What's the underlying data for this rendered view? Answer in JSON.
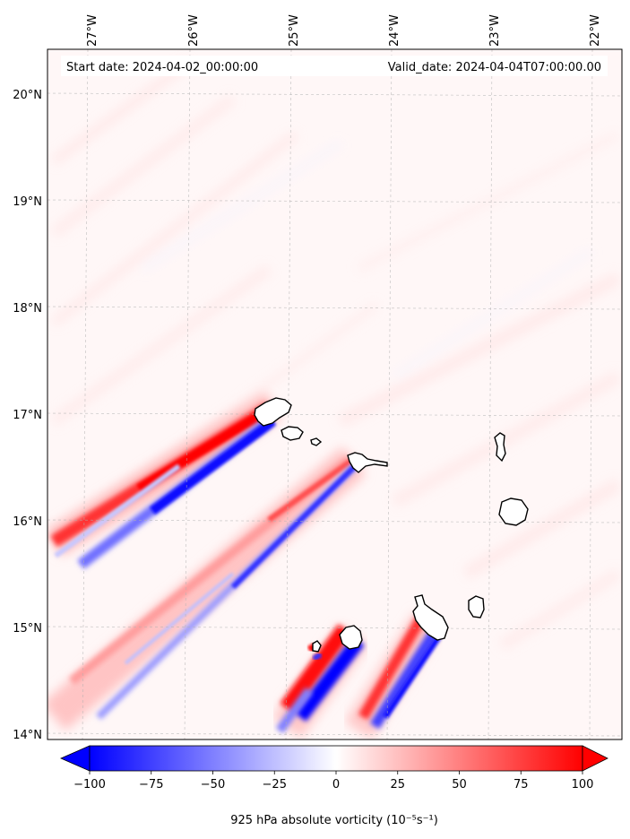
{
  "chart_data": {
    "type": "heatmap",
    "title_left": "Start date: 2024-04-02_00:00:00",
    "title_right": "Valid_date: 2024-04-04T07:00:00.00",
    "x_ticks": [
      "27°W",
      "26°W",
      "25°W",
      "24°W",
      "23°W",
      "22°W"
    ],
    "y_ticks": [
      "20°N",
      "19°N",
      "18°N",
      "17°N",
      "16°N",
      "15°N",
      "14°N"
    ],
    "xlim": [
      -27.35,
      -21.9
    ],
    "ylim": [
      13.95,
      20.45
    ],
    "colorbar": {
      "label": "925 hPa absolute vorticity (10⁻⁵s⁻¹)",
      "ticks": [
        "−100",
        "−75",
        "−50",
        "−25",
        "0",
        "25",
        "50",
        "75",
        "100"
      ],
      "range": [
        -100,
        100
      ],
      "cmap": "bwr",
      "extend": "both"
    },
    "grid": true,
    "colors": {
      "min": "#0000ff",
      "mid": "#ffffff",
      "max": "#ff0000",
      "coast": "#000000",
      "grid": "#b0b0b0"
    },
    "features": [
      {
        "name": "Santo Antao wake positive",
        "sign": "positive",
        "peak": 100
      },
      {
        "name": "Santo Antao wake negative",
        "sign": "negative",
        "peak": -100
      },
      {
        "name": "Sao Nicolau wake positive",
        "sign": "positive",
        "peak": 60
      },
      {
        "name": "Sao Nicolau wake negative",
        "sign": "negative",
        "peak": -80
      },
      {
        "name": "Fogo wake positive",
        "sign": "positive",
        "peak": 100
      },
      {
        "name": "Fogo wake negative",
        "sign": "negative",
        "peak": -100
      },
      {
        "name": "Santiago wake positive",
        "sign": "positive",
        "peak": 90
      },
      {
        "name": "Santiago wake negative",
        "sign": "negative",
        "peak": -80
      }
    ]
  }
}
